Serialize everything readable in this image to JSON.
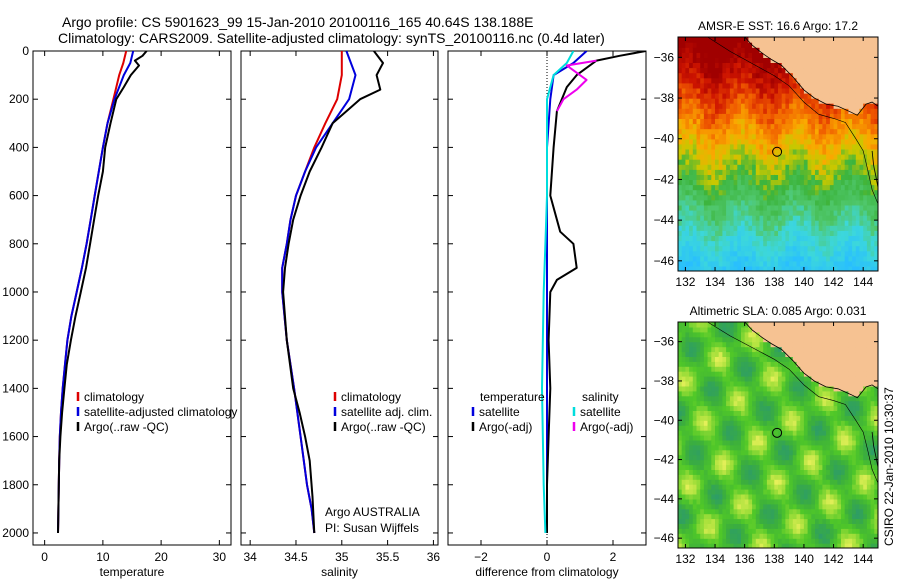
{
  "title_line1": "Argo profile: CS 5901623_99 15-Jan-2010 20100116_165 40.64S 138.188E",
  "title_line2": "Climatology: CARS2009. Satellite-adjusted climatology: synTS_20100116.nc (0.4d later)",
  "footer_vertical": "CSIRO 22-Jan-2010 10:30:37",
  "argo_credit": [
    "Argo AUSTRALIA",
    "PI: Susan Wijffels"
  ],
  "colors": {
    "climatology": "#dd0000",
    "satellite": "#0000dd",
    "argo": "#000000",
    "sat_diff_salinity": "#00dddd",
    "argo_diff_salinity": "#ee00ee",
    "land": "#f6c292",
    "map_frame": "#000000"
  },
  "chart_data": [
    {
      "id": "temperature",
      "type": "line",
      "xlabel": "temperature",
      "ylabel": "",
      "xlim": [
        -2,
        32
      ],
      "ylim": [
        2050,
        0
      ],
      "xticks": [
        0,
        10,
        20,
        30
      ],
      "yticks": [
        0,
        200,
        400,
        600,
        800,
        1000,
        1200,
        1400,
        1600,
        1800,
        2000
      ],
      "legend": [
        "climatology",
        "satellite-adjusted climatology",
        "Argo(..raw -QC)"
      ],
      "series": [
        {
          "name": "climatology",
          "color": "#dd0000",
          "x": [
            14.0,
            13.5,
            12.8,
            11.8,
            10.8,
            10.0,
            9.3,
            8.6,
            7.9,
            7.2,
            6.4,
            5.5,
            4.6,
            3.9,
            3.5,
            3.1,
            2.8,
            2.6,
            2.5,
            2.4,
            2.3
          ],
          "y": [
            0,
            50,
            100,
            200,
            300,
            400,
            500,
            600,
            700,
            800,
            900,
            1000,
            1100,
            1200,
            1300,
            1400,
            1500,
            1600,
            1700,
            1850,
            2000
          ]
        },
        {
          "name": "satellite-adjusted climatology",
          "color": "#0000dd",
          "x": [
            15.2,
            14.7,
            13.6,
            12.0,
            10.8,
            10.0,
            9.3,
            8.6,
            7.9,
            7.2,
            6.4,
            5.5,
            4.6,
            3.9,
            3.5,
            3.1,
            2.8,
            2.6,
            2.5,
            2.4,
            2.3
          ],
          "y": [
            0,
            50,
            100,
            200,
            300,
            400,
            500,
            600,
            700,
            800,
            900,
            1000,
            1100,
            1200,
            1300,
            1400,
            1500,
            1600,
            1700,
            1850,
            2000
          ]
        },
        {
          "name": "Argo(..raw -QC)",
          "color": "#000000",
          "x": [
            17.5,
            16.8,
            15.5,
            16.2,
            14.8,
            13.6,
            12.3,
            11.3,
            10.4,
            10.0,
            9.2,
            8.5,
            7.8,
            7.1,
            6.2,
            5.3,
            4.5,
            3.8,
            3.4,
            3.0,
            2.7,
            2.5,
            2.4,
            2.3
          ],
          "y": [
            0,
            20,
            40,
            60,
            100,
            150,
            200,
            300,
            400,
            500,
            600,
            700,
            800,
            900,
            1000,
            1100,
            1200,
            1300,
            1400,
            1500,
            1600,
            1700,
            1850,
            2000
          ]
        }
      ]
    },
    {
      "id": "salinity",
      "type": "line",
      "xlabel": "salinity",
      "ylabel": "",
      "xlim": [
        33.9,
        36.05
      ],
      "ylim": [
        2050,
        0
      ],
      "xticks": [
        34,
        34.5,
        35,
        35.5,
        36
      ],
      "yticks": [
        0,
        200,
        400,
        600,
        800,
        1000,
        1200,
        1400,
        1600,
        1800,
        2000
      ],
      "legend": [
        "climatology",
        "satellite adj. clim.",
        "Argo(..raw -QC)"
      ],
      "series": [
        {
          "name": "climatology",
          "color": "#dd0000",
          "x": [
            35.0,
            35.0,
            34.95,
            34.82,
            34.7,
            34.6,
            34.5,
            34.44,
            34.4,
            34.35,
            34.35,
            34.4,
            34.48,
            34.55,
            34.62,
            34.67,
            34.7
          ],
          "y": [
            0,
            100,
            200,
            300,
            400,
            500,
            600,
            700,
            800,
            900,
            1000,
            1200,
            1400,
            1600,
            1800,
            1900,
            2000
          ]
        },
        {
          "name": "satellite adj. clim.",
          "color": "#0000dd",
          "x": [
            35.05,
            35.15,
            35.08,
            34.9,
            34.72,
            34.6,
            34.5,
            34.44,
            34.4,
            34.35,
            34.35,
            34.4,
            34.48,
            34.55,
            34.62,
            34.67,
            34.7
          ],
          "y": [
            0,
            100,
            200,
            300,
            400,
            500,
            600,
            700,
            800,
            900,
            1000,
            1200,
            1400,
            1600,
            1800,
            1900,
            2000
          ]
        },
        {
          "name": "Argo(..raw -QC)",
          "color": "#000000",
          "x": [
            35.35,
            35.45,
            35.38,
            35.42,
            35.2,
            35.05,
            34.9,
            34.78,
            34.65,
            34.55,
            34.47,
            34.42,
            34.38,
            34.36,
            34.4,
            34.47,
            34.54,
            34.6,
            34.65,
            34.68,
            34.7
          ],
          "y": [
            0,
            50,
            100,
            160,
            200,
            250,
            300,
            400,
            500,
            600,
            700,
            800,
            900,
            1000,
            1200,
            1400,
            1500,
            1600,
            1700,
            1850,
            2000
          ]
        }
      ]
    },
    {
      "id": "difference",
      "type": "line",
      "xlabel": "difference from climatology",
      "ylabel": "",
      "xlim": [
        -3,
        3
      ],
      "ylim": [
        2050,
        0
      ],
      "xticks": [
        -2,
        0,
        2
      ],
      "yticks": [
        0,
        200,
        400,
        600,
        800,
        1000,
        1200,
        1400,
        1600,
        1800,
        2000
      ],
      "legend_left_title": "temperature",
      "legend_right_title": "salinity",
      "legend_left": [
        "satellite",
        "Argo(-adj)"
      ],
      "legend_right": [
        "satellite",
        "Argo(-adj)"
      ],
      "series": [
        {
          "name": "satellite",
          "group": "temperature",
          "color": "#0000dd",
          "x": [
            1.2,
            0.8,
            0.2,
            0.1,
            0.0,
            0.0,
            0.0,
            0.0,
            0.0,
            0.0,
            0.0,
            0.0,
            0.0
          ],
          "y": [
            0,
            50,
            100,
            200,
            400,
            600,
            800,
            1000,
            1200,
            1400,
            1600,
            1800,
            2000
          ]
        },
        {
          "name": "Argo(-adj)",
          "group": "temperature",
          "color": "#000000",
          "x": [
            3.0,
            2.2,
            1.5,
            0.9,
            0.6,
            0.3,
            0.2,
            0.1,
            0.4,
            0.8,
            0.9,
            0.3,
            0.1,
            0.05,
            0.1,
            0.05,
            0.0,
            0.0
          ],
          "y": [
            0,
            20,
            40,
            100,
            150,
            250,
            400,
            600,
            750,
            800,
            900,
            950,
            1000,
            1200,
            1400,
            1600,
            1800,
            2000
          ]
        },
        {
          "name": "satellite",
          "group": "salinity",
          "color": "#00dddd",
          "x": [
            0.8,
            0.6,
            0.2,
            0.0,
            0.0,
            0.0,
            -0.05,
            -0.1,
            -0.15,
            -0.1,
            -0.05
          ],
          "y": [
            0,
            50,
            100,
            200,
            400,
            600,
            800,
            1000,
            1400,
            1800,
            2000
          ]
        },
        {
          "name": "Argo(-adj)",
          "group": "salinity",
          "color": "#ee00ee",
          "x": [
            1.5,
            0.6,
            0.8,
            1.2,
            0.9,
            0.5,
            0.3
          ],
          "y": [
            40,
            60,
            80,
            120,
            160,
            200,
            250
          ]
        }
      ]
    },
    {
      "id": "sst_map",
      "type": "heatmap",
      "title": "AMSR-E SST: 16.6 Argo: 17.2",
      "xlim": [
        131.5,
        145
      ],
      "ylim": [
        -46.5,
        -35
      ],
      "xticks": [
        132,
        134,
        136,
        138,
        140,
        142,
        144
      ],
      "yticks": [
        -36,
        -38,
        -40,
        -42,
        -44,
        -46
      ],
      "profile_marker": {
        "lon": 138.188,
        "lat": -40.64
      }
    },
    {
      "id": "sla_map",
      "type": "heatmap",
      "title": "Altimetric SLA: 0.085 Argo: 0.031",
      "xlim": [
        131.5,
        145
      ],
      "ylim": [
        -46.5,
        -35
      ],
      "xticks": [
        132,
        134,
        136,
        138,
        140,
        142,
        144
      ],
      "yticks": [
        -36,
        -38,
        -40,
        -42,
        -44,
        -46
      ],
      "profile_marker": {
        "lon": 138.188,
        "lat": -40.64
      }
    }
  ]
}
